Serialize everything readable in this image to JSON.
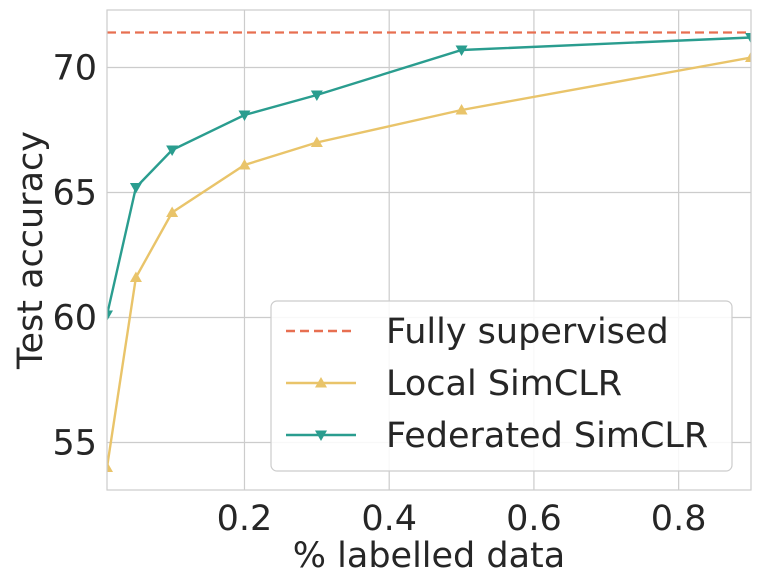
{
  "chart_data": {
    "type": "line",
    "title": "",
    "xlabel": "% labelled data",
    "ylabel": "Test accuracy",
    "xlim": [
      0.01,
      0.9
    ],
    "ylim": [
      53.1,
      72.3
    ],
    "xticks": [
      0.2,
      0.4,
      0.6,
      0.8
    ],
    "xtick_labels": [
      "0.2",
      "0.4",
      "0.6",
      "0.8"
    ],
    "yticks": [
      55,
      60,
      65,
      70
    ],
    "ytick_labels": [
      "55",
      "60",
      "65",
      "70"
    ],
    "grid": true,
    "legend_position": "lower-right",
    "reference_lines": [
      {
        "name": "Fully supervised",
        "y": 71.4,
        "color": "#e76f51",
        "style": "dashed"
      }
    ],
    "series": [
      {
        "name": "Local SimCLR",
        "color": "#e9c46a",
        "marker": "triangle-up",
        "x": [
          0.01,
          0.05,
          0.1,
          0.2,
          0.3,
          0.5,
          0.9
        ],
        "y": [
          54.0,
          61.6,
          64.2,
          66.1,
          67.0,
          68.3,
          70.4
        ]
      },
      {
        "name": "Federated SimCLR",
        "color": "#2a9d8f",
        "marker": "triangle-down",
        "x": [
          0.01,
          0.05,
          0.1,
          0.2,
          0.3,
          0.5,
          0.9
        ],
        "y": [
          60.1,
          65.2,
          66.7,
          68.1,
          68.9,
          70.7,
          71.2
        ]
      }
    ]
  }
}
